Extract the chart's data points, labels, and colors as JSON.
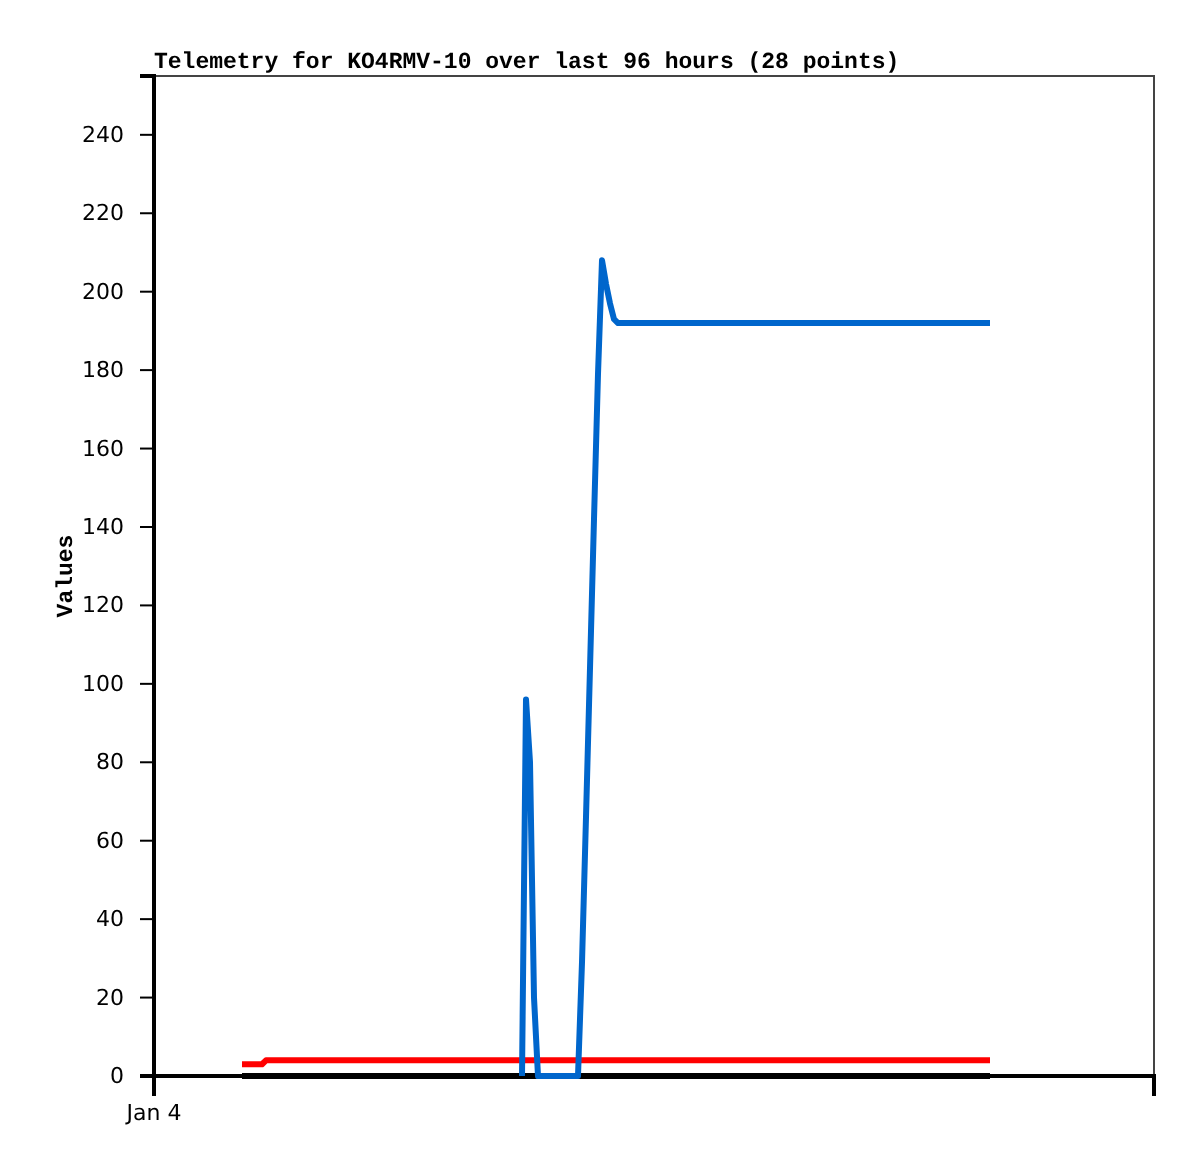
{
  "chart_data": {
    "type": "line",
    "title": "Telemetry for KO4RMV-10 over last 96 hours (28 points)",
    "ylabel": "Values",
    "categories": [
      "Jan 4",
      null,
      null,
      null,
      null,
      null,
      null,
      null,
      null,
      null,
      null,
      null,
      null,
      null,
      null,
      null,
      null,
      null,
      null,
      null,
      null,
      null,
      null,
      null,
      null,
      null,
      null,
      null,
      null,
      null,
      null,
      null,
      null,
      null,
      null,
      null,
      null,
      null,
      null,
      null,
      null,
      null,
      null,
      null,
      null,
      null,
      null,
      null,
      null,
      null,
      null,
      null,
      null,
      null,
      null,
      null,
      null,
      null,
      null,
      null,
      null,
      null,
      null,
      null,
      null,
      null,
      null,
      null,
      null,
      null,
      null,
      null,
      null,
      null,
      null,
      null,
      null,
      null,
      null,
      null,
      null,
      null,
      null,
      null,
      null,
      null,
      null,
      null,
      null,
      null,
      null,
      null,
      null,
      null,
      null,
      null,
      null,
      null,
      null,
      null,
      null,
      null,
      null,
      null,
      null,
      null,
      null,
      null,
      null,
      null,
      null,
      null,
      null,
      null,
      null,
      null,
      null,
      null,
      null,
      null,
      null,
      null,
      null,
      null,
      null,
      null,
      null,
      null,
      null,
      null,
      null,
      null,
      null,
      null,
      null,
      null,
      null,
      null,
      null,
      null,
      null,
      null,
      null,
      null,
      null,
      null,
      null,
      null,
      null,
      null,
      null,
      null,
      null,
      null,
      null,
      null,
      null,
      null,
      null,
      null,
      null,
      null,
      null,
      null,
      null,
      null,
      null,
      null,
      null,
      null,
      null,
      null,
      null,
      null,
      null,
      null,
      null,
      null,
      null,
      null,
      null,
      null,
      null,
      null,
      null,
      null,
      null,
      null,
      null,
      null,
      null,
      null,
      null,
      null,
      null,
      null,
      null,
      null,
      null,
      null,
      null,
      null,
      null,
      null,
      null,
      null,
      null,
      null,
      null,
      null,
      null,
      null,
      null,
      null,
      null,
      null,
      null,
      null,
      null,
      null,
      null,
      null,
      null,
      null,
      null,
      null,
      null,
      null,
      null,
      null,
      null,
      null,
      null,
      null,
      null,
      null,
      null,
      null,
      null,
      null,
      null,
      null,
      null,
      null,
      null,
      null,
      null,
      null,
      null,
      null,
      null
    ],
    "ylim": [
      0,
      255
    ],
    "yticks": [
      0,
      20,
      40,
      60,
      80,
      100,
      120,
      140,
      160,
      180,
      200,
      220,
      240
    ],
    "line_style": "solid",
    "series": [
      {
        "color": "#000000",
        "values": [
          null,
          null,
          null,
          null,
          null,
          null,
          null,
          null,
          null,
          null,
          null,
          null,
          null,
          null,
          null,
          null,
          null,
          null,
          null,
          null,
          null,
          null,
          0,
          0,
          0,
          0,
          0,
          0,
          0,
          0,
          0,
          0,
          0,
          0,
          0,
          0,
          0,
          0,
          0,
          0,
          0,
          0,
          0,
          0,
          0,
          0,
          0,
          0,
          0,
          0,
          0,
          0,
          0,
          0,
          0,
          0,
          0,
          0,
          0,
          0,
          0,
          0,
          0,
          0,
          0,
          0,
          0,
          0,
          0,
          0,
          0,
          0,
          0,
          0,
          0,
          0,
          0,
          0,
          0,
          0,
          0,
          0,
          0,
          0,
          0,
          0,
          0,
          0,
          0,
          0,
          0,
          0,
          0,
          0,
          0,
          0,
          0,
          0,
          0,
          0,
          0,
          0,
          0,
          0,
          0,
          0,
          0,
          0,
          0,
          0,
          0,
          0,
          0,
          0,
          0,
          0,
          0,
          0,
          0,
          0,
          0,
          0,
          0,
          0,
          0,
          0,
          0,
          0,
          0,
          0,
          0,
          0,
          0,
          0,
          0,
          0,
          0,
          0,
          0,
          0,
          0,
          0,
          0,
          0,
          0,
          0,
          0,
          0,
          0,
          0,
          0,
          0,
          0,
          0,
          0,
          0,
          0,
          0,
          0,
          0,
          0,
          0,
          0,
          0,
          0,
          0,
          0,
          0,
          0,
          0,
          0,
          0,
          0,
          0,
          0,
          0,
          0,
          0,
          0,
          0,
          0,
          0,
          0,
          0,
          0,
          0,
          0,
          0,
          0,
          0,
          0,
          0,
          0,
          0,
          0,
          0,
          0,
          0,
          0,
          0,
          0,
          0,
          0,
          0,
          0,
          0,
          0,
          0,
          0,
          0,
          null,
          null,
          null,
          null,
          null,
          null,
          null,
          null,
          null,
          null,
          null,
          null,
          null,
          null,
          null,
          null,
          null,
          null,
          null,
          null,
          null,
          null,
          null,
          null,
          null,
          null,
          null,
          null,
          null,
          null,
          null,
          null,
          null,
          null,
          null,
          null,
          null,
          null,
          null,
          null,
          null
        ]
      },
      {
        "color": "#ff0000",
        "values": [
          null,
          null,
          null,
          null,
          null,
          null,
          null,
          null,
          null,
          null,
          null,
          null,
          null,
          null,
          null,
          null,
          null,
          null,
          null,
          null,
          null,
          null,
          3,
          3,
          3,
          3,
          3,
          3,
          4,
          4,
          4,
          4,
          4,
          4,
          4,
          4,
          4,
          4,
          4,
          4,
          4,
          4,
          4,
          4,
          4,
          4,
          4,
          4,
          4,
          4,
          4,
          4,
          4,
          4,
          4,
          4,
          4,
          4,
          4,
          4,
          4,
          4,
          4,
          4,
          4,
          4,
          4,
          4,
          4,
          4,
          4,
          4,
          4,
          4,
          4,
          4,
          4,
          4,
          4,
          4,
          4,
          4,
          4,
          4,
          4,
          4,
          4,
          4,
          4,
          4,
          4,
          4,
          4,
          4,
          4,
          4,
          4,
          4,
          4,
          4,
          4,
          4,
          4,
          4,
          4,
          4,
          4,
          4,
          4,
          4,
          4,
          4,
          4,
          4,
          4,
          4,
          4,
          4,
          4,
          4,
          4,
          4,
          4,
          4,
          4,
          4,
          4,
          4,
          4,
          4,
          4,
          4,
          4,
          4,
          4,
          4,
          4,
          4,
          4,
          4,
          4,
          4,
          4,
          4,
          4,
          4,
          4,
          4,
          4,
          4,
          4,
          4,
          4,
          4,
          4,
          4,
          4,
          4,
          4,
          4,
          4,
          4,
          4,
          4,
          4,
          4,
          4,
          4,
          4,
          4,
          4,
          4,
          4,
          4,
          4,
          4,
          4,
          4,
          4,
          4,
          4,
          4,
          4,
          4,
          4,
          4,
          4,
          4,
          4,
          4,
          4,
          4,
          4,
          4,
          4,
          4,
          4,
          4,
          4,
          4,
          4,
          4,
          4,
          4,
          4,
          4,
          4,
          4,
          4,
          4,
          null,
          null,
          null,
          null,
          null,
          null,
          null,
          null,
          null,
          null,
          null,
          null,
          null,
          null,
          null,
          null,
          null,
          null,
          null,
          null,
          null,
          null,
          null,
          null,
          null,
          null,
          null,
          null,
          null,
          null,
          null,
          null,
          null,
          null,
          null,
          null,
          null,
          null,
          null,
          null,
          null
        ]
      },
      {
        "color": "#0066cc",
        "values": [
          null,
          null,
          null,
          null,
          null,
          null,
          null,
          null,
          null,
          null,
          null,
          null,
          null,
          null,
          null,
          null,
          null,
          null,
          null,
          null,
          null,
          null,
          null,
          null,
          null,
          null,
          null,
          null,
          null,
          null,
          null,
          null,
          null,
          null,
          null,
          null,
          null,
          null,
          null,
          null,
          null,
          null,
          null,
          null,
          null,
          null,
          null,
          null,
          null,
          null,
          null,
          null,
          null,
          null,
          null,
          null,
          null,
          null,
          null,
          null,
          null,
          null,
          null,
          null,
          null,
          null,
          null,
          null,
          null,
          null,
          null,
          null,
          null,
          null,
          null,
          null,
          null,
          null,
          null,
          null,
          null,
          null,
          null,
          null,
          null,
          null,
          null,
          null,
          null,
          null,
          null,
          null,
          0,
          96,
          80,
          20,
          0,
          0,
          0,
          0,
          0,
          0,
          0,
          0,
          0,
          0,
          0,
          29,
          66,
          104,
          142,
          179,
          208,
          202,
          197,
          193,
          192,
          192,
          192,
          192,
          192,
          192,
          192,
          192,
          192,
          192,
          192,
          192,
          192,
          192,
          192,
          192,
          192,
          192,
          192,
          192,
          192,
          192,
          192,
          192,
          192,
          192,
          192,
          192,
          192,
          192,
          192,
          192,
          192,
          192,
          192,
          192,
          192,
          192,
          192,
          192,
          192,
          192,
          192,
          192,
          192,
          192,
          192,
          192,
          192,
          192,
          192,
          192,
          192,
          192,
          192,
          192,
          192,
          192,
          192,
          192,
          192,
          192,
          192,
          192,
          192,
          192,
          192,
          192,
          192,
          192,
          192,
          192,
          192,
          192,
          192,
          192,
          192,
          192,
          192,
          192,
          192,
          192,
          192,
          192,
          192,
          192,
          192,
          192,
          192,
          192,
          192,
          192,
          192,
          192,
          null,
          null,
          null,
          null,
          null,
          null,
          null,
          null,
          null,
          null,
          null,
          null,
          null,
          null,
          null,
          null,
          null,
          null,
          null,
          null,
          null,
          null,
          null,
          null,
          null,
          null,
          null,
          null,
          null,
          null,
          null,
          null,
          null,
          null,
          null,
          null,
          null,
          null,
          null,
          null,
          null
        ]
      }
    ]
  }
}
